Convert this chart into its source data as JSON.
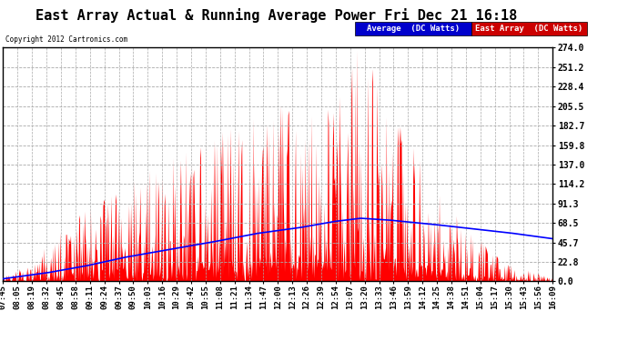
{
  "title": "East Array Actual & Running Average Power Fri Dec 21 16:18",
  "copyright": "Copyright 2012 Cartronics.com",
  "legend_labels": [
    "Average  (DC Watts)",
    "East Array  (DC Watts)"
  ],
  "legend_colors": [
    "#0000cc",
    "#cc0000"
  ],
  "y_max": 274.0,
  "y_min": 0.0,
  "y_ticks": [
    0.0,
    22.8,
    45.7,
    68.5,
    91.3,
    114.2,
    137.0,
    159.8,
    182.7,
    205.5,
    228.4,
    251.2,
    274.0
  ],
  "plot_bg_color": "#ffffff",
  "fig_bg_color": "#ffffff",
  "grid_color": "#aaaaaa",
  "border_color": "#000000",
  "x_labels": [
    "07:45",
    "08:05",
    "08:19",
    "08:32",
    "08:45",
    "08:58",
    "09:11",
    "09:24",
    "09:37",
    "09:50",
    "10:03",
    "10:16",
    "10:29",
    "10:42",
    "10:55",
    "11:08",
    "11:21",
    "11:34",
    "11:47",
    "12:00",
    "12:13",
    "12:26",
    "12:39",
    "12:54",
    "13:07",
    "13:20",
    "13:33",
    "13:46",
    "13:59",
    "14:12",
    "14:25",
    "14:38",
    "14:51",
    "15:04",
    "15:17",
    "15:30",
    "15:43",
    "15:56",
    "16:09"
  ],
  "avg_ctrl_x": [
    0.0,
    0.08,
    0.15,
    0.22,
    0.3,
    0.38,
    0.46,
    0.54,
    0.6,
    0.65,
    0.7,
    0.78,
    0.85,
    0.92,
    1.0
  ],
  "avg_ctrl_y": [
    3.0,
    10.0,
    18.0,
    28.0,
    37.0,
    46.0,
    56.0,
    63.0,
    70.0,
    74.0,
    72.0,
    67.0,
    62.0,
    57.0,
    50.0
  ],
  "east_envelope_x": [
    0.0,
    0.05,
    0.1,
    0.18,
    0.25,
    0.35,
    0.45,
    0.55,
    0.6,
    0.65,
    0.7,
    0.78,
    0.85,
    0.92,
    1.0
  ],
  "east_envelope_y": [
    8.0,
    20.0,
    60.0,
    100.0,
    130.0,
    160.0,
    195.0,
    220.0,
    255.0,
    274.0,
    220.0,
    120.0,
    60.0,
    20.0,
    5.0
  ],
  "seed": 123,
  "n_points": 800,
  "title_fontsize": 11,
  "label_fontsize": 6.5,
  "tick_fontsize": 7
}
